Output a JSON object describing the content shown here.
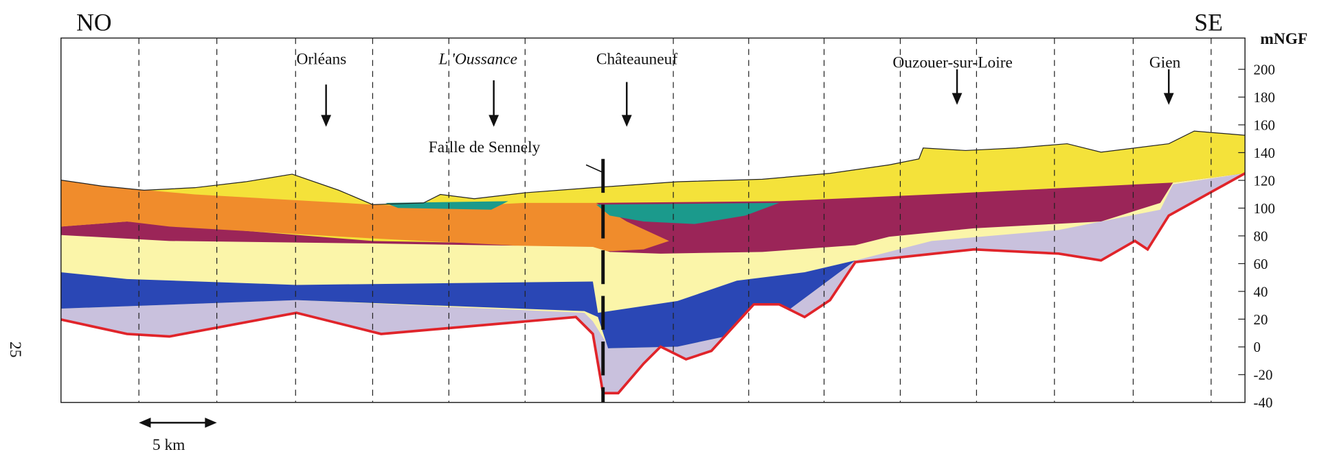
{
  "header": {
    "left": "NO",
    "right": "SE"
  },
  "axis": {
    "unit": "mNGF",
    "ticks": [
      200,
      180,
      160,
      140,
      120,
      100,
      80,
      60,
      40,
      20,
      0,
      -20,
      -40
    ]
  },
  "places": [
    "Orléans",
    "L 'Oussance",
    "Châteauneuf",
    "Ouzouer-sur-Loire",
    "Gien"
  ],
  "fault": "Faille de Sennely",
  "scale": "5 km",
  "page_number": "25"
}
